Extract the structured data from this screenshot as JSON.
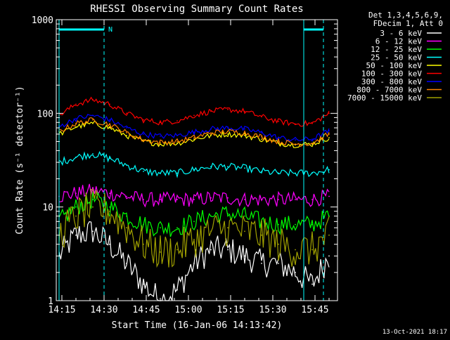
{
  "chart_data": {
    "type": "line",
    "title": "RHESSI Observing Summary Count Rates",
    "xlabel": "Start Time (16-Jan-06 14:13:42)",
    "ylabel": "Count Rate (s⁻¹ detector⁻¹)",
    "yscale": "log",
    "ylim": [
      1,
      1000
    ],
    "xlim_minutes": [
      -0.7,
      99.3
    ],
    "x_ticks": [
      "14:15",
      "14:30",
      "14:45",
      "15:00",
      "15:15",
      "15:30",
      "15:45"
    ],
    "y_ticks": [
      "1",
      "10",
      "100",
      "1000"
    ],
    "grid": false,
    "legend_position": "right",
    "legend_header": [
      "Det 1,3,4,5,6,9,",
      "FDecim 1, Att 0"
    ],
    "annotations": {
      "night_marker": "N",
      "cyan_vertical_lines": [
        "14:14",
        "14:30",
        "15:41",
        "15:48"
      ],
      "footer_date": "13-Oct-2021 18:17"
    },
    "x_sample_times": [
      "14:14",
      "14:20",
      "14:26",
      "14:32",
      "14:38",
      "14:44",
      "14:50",
      "14:56",
      "15:02",
      "15:08",
      "15:14",
      "15:20",
      "15:26",
      "15:32",
      "15:38",
      "15:44",
      "15:50"
    ],
    "series": [
      {
        "name": "3 - 6 keV",
        "color": "#ffffff",
        "values": [
          3.0,
          5.0,
          5.5,
          4.0,
          2.5,
          1.5,
          1.0,
          1.3,
          2.5,
          3.5,
          3.5,
          3.0,
          2.5,
          2.5,
          2.0,
          1.5,
          3.0
        ]
      },
      {
        "name": "6 - 12 keV",
        "color": "#ff00ff",
        "values": [
          13,
          14,
          15,
          14,
          13,
          12,
          12,
          12,
          12,
          12.5,
          12.5,
          12,
          12,
          12,
          12,
          12,
          13
        ]
      },
      {
        "name": "12 - 25 keV",
        "color": "#00ff00",
        "values": [
          7,
          10,
          12,
          10,
          8,
          6.5,
          6,
          6,
          7,
          8,
          8.5,
          8,
          7,
          6.5,
          6.5,
          6.5,
          8
        ]
      },
      {
        "name": "25 - 50 keV",
        "color": "#00ffff",
        "values": [
          30,
          34,
          37,
          33,
          28,
          24,
          23,
          23,
          25,
          27,
          27,
          26,
          24,
          23,
          23,
          23,
          25
        ]
      },
      {
        "name": "50 - 100 keV",
        "color": "#ffff00",
        "values": [
          60,
          72,
          78,
          70,
          58,
          50,
          47,
          48,
          53,
          58,
          60,
          58,
          53,
          48,
          46,
          47,
          55
        ]
      },
      {
        "name": "100 - 300 keV",
        "color": "#ff0000",
        "values": [
          95,
          125,
          140,
          125,
          100,
          85,
          80,
          83,
          95,
          105,
          110,
          105,
          92,
          82,
          77,
          78,
          100
        ]
      },
      {
        "name": "300 - 800 keV",
        "color": "#0000ff",
        "values": [
          72,
          88,
          95,
          85,
          70,
          60,
          57,
          58,
          63,
          68,
          70,
          68,
          62,
          55,
          52,
          53,
          65
        ]
      },
      {
        "name": "800 - 7000 keV",
        "color": "#ff8000",
        "values": [
          64,
          78,
          85,
          76,
          62,
          52,
          49,
          50,
          55,
          62,
          64,
          62,
          56,
          50,
          47,
          48,
          60
        ]
      },
      {
        "name": "7000 - 15000 keV",
        "color": "#a0a000",
        "values": [
          5,
          8,
          10,
          9,
          6,
          4,
          3.3,
          3.5,
          4.5,
          5.5,
          6,
          5.5,
          5,
          4,
          3.5,
          3.5,
          5
        ]
      }
    ]
  }
}
